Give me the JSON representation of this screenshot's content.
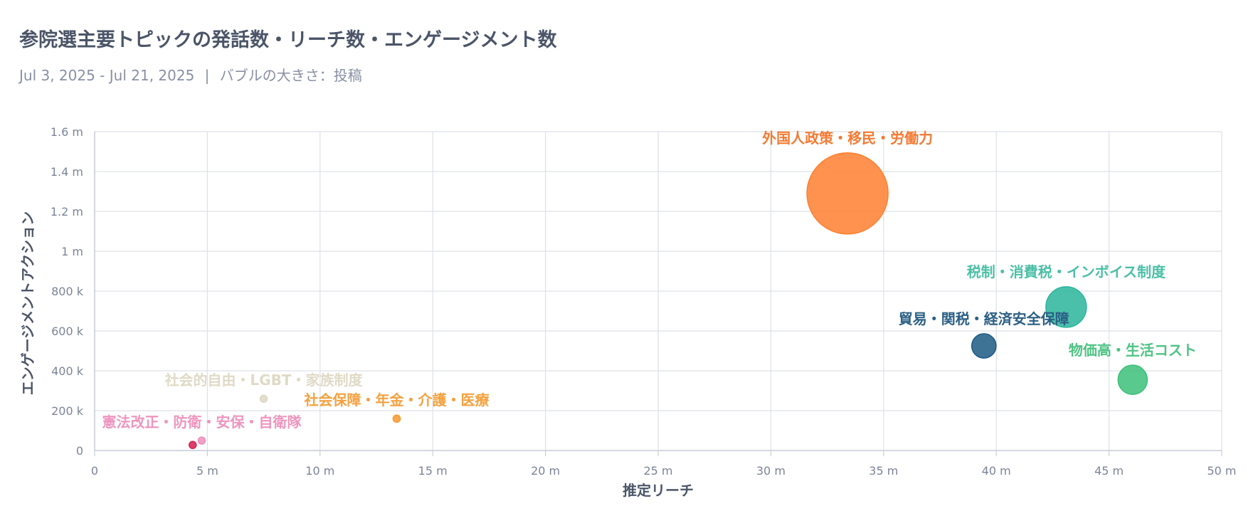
{
  "title": "参院選主要トピックの発話数・リーチ数・エンゲージメント数",
  "subtitle": {
    "date_range": "Jul 3, 2025 - Jul 21, 2025",
    "separator": "|",
    "size_note": "バブルの大きさ：投稿"
  },
  "chart_data": {
    "type": "scatter",
    "variant": "bubble",
    "xlabel": "推定リーチ",
    "ylabel": "エンゲージメントアクション",
    "xlim": [
      0,
      50000000
    ],
    "ylim": [
      0,
      1600000
    ],
    "x_ticks": [
      {
        "value": 0,
        "label": "0"
      },
      {
        "value": 5000000,
        "label": "5 m"
      },
      {
        "value": 10000000,
        "label": "10 m"
      },
      {
        "value": 15000000,
        "label": "15 m"
      },
      {
        "value": 20000000,
        "label": "20 m"
      },
      {
        "value": 25000000,
        "label": "25 m"
      },
      {
        "value": 30000000,
        "label": "30 m"
      },
      {
        "value": 35000000,
        "label": "35 m"
      },
      {
        "value": 40000000,
        "label": "40 m"
      },
      {
        "value": 45000000,
        "label": "45 m"
      },
      {
        "value": 50000000,
        "label": "50 m"
      }
    ],
    "y_ticks": [
      {
        "value": 0,
        "label": "0"
      },
      {
        "value": 200000,
        "label": "200 k"
      },
      {
        "value": 400000,
        "label": "400 k"
      },
      {
        "value": 600000,
        "label": "600 k"
      },
      {
        "value": 800000,
        "label": "800 k"
      },
      {
        "value": 1000000,
        "label": "1 m"
      },
      {
        "value": 1200000,
        "label": "1.2 m"
      },
      {
        "value": 1400000,
        "label": "1.4 m"
      },
      {
        "value": 1600000,
        "label": "1.6 m"
      }
    ],
    "grid": true,
    "legend": "none",
    "series": [
      {
        "label": "外国人政策・移民・労働力",
        "x": 33400000,
        "y": 1290000,
        "size": 100,
        "color": "#ff7f2f",
        "label_color": "#f47a33"
      },
      {
        "label": "税制・消費税・インボイス制度",
        "x": 43100000,
        "y": 720000,
        "size": 25,
        "color": "#2ab59b",
        "label_color": "#4cbfa6"
      },
      {
        "label": "貿易・関税・経済安全保障",
        "x": 39450000,
        "y": 525000,
        "size": 9,
        "color": "#1d5a84",
        "label_color": "#2b5f85"
      },
      {
        "label": "物価高・生活コスト",
        "x": 46050000,
        "y": 355000,
        "size": 13,
        "color": "#3dbf7a",
        "label_color": "#4ec383"
      },
      {
        "label": "社会的自由・LGBT・家族制度",
        "x": 7500000,
        "y": 260000,
        "size": 0.5,
        "color": "#ddd8c4",
        "label_color": "#e0dac6"
      },
      {
        "label": "社会保障・年金・介護・医療",
        "x": 13400000,
        "y": 160000,
        "size": 0.8,
        "color": "#f79a31",
        "label_color": "#f4a13f"
      },
      {
        "label": "憲法改正・防衛・安保・自衛隊",
        "x": 4750000,
        "y": 50000,
        "size": 0.16,
        "color": "#ef8fbc",
        "label_color": "#ef95bf"
      },
      {
        "label": "",
        "x": 4350000,
        "y": 28000,
        "size": 0.12,
        "color": "#d6204f",
        "label_color": "#d6204f"
      }
    ]
  }
}
